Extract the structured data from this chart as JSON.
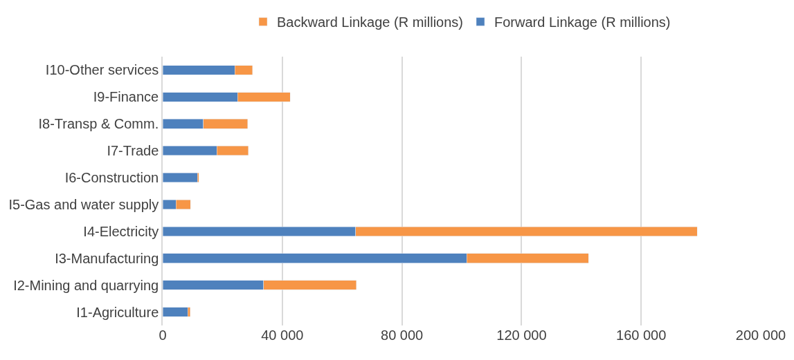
{
  "chart_data": {
    "type": "bar",
    "orientation": "horizontal",
    "stacked": true,
    "categories": [
      "I10-Other services",
      "I9-Finance",
      "I8-Transp & Comm.",
      "I7-Trade",
      "I6-Construction",
      "I5-Gas and water supply",
      "I4-Electricity",
      "I3-Manufacturing",
      "I2-Mining and quarrying",
      "I1-Agriculture"
    ],
    "series": [
      {
        "name": "Forward Linkage (R millions)",
        "color": "#4e81bd",
        "values": [
          24100,
          25100,
          13600,
          18100,
          11600,
          4400,
          64500,
          101700,
          33700,
          8400
        ]
      },
      {
        "name": "Backward Linkage (R millions)",
        "color": "#f79646",
        "values": [
          5900,
          17600,
          14800,
          10500,
          500,
          4900,
          114300,
          40700,
          31100,
          800
        ]
      }
    ],
    "xlim": [
      0,
      200000
    ],
    "xticks": [
      0,
      {
        "value": 40000,
        "label": "40 000"
      },
      {
        "value": 80000,
        "label": "80 000"
      },
      {
        "value": 120000,
        "label": "120 000"
      },
      {
        "value": 160000,
        "label": "160 000"
      },
      {
        "value": 200000,
        "label": "200 000"
      }
    ],
    "grid": "x",
    "legend": "top"
  }
}
